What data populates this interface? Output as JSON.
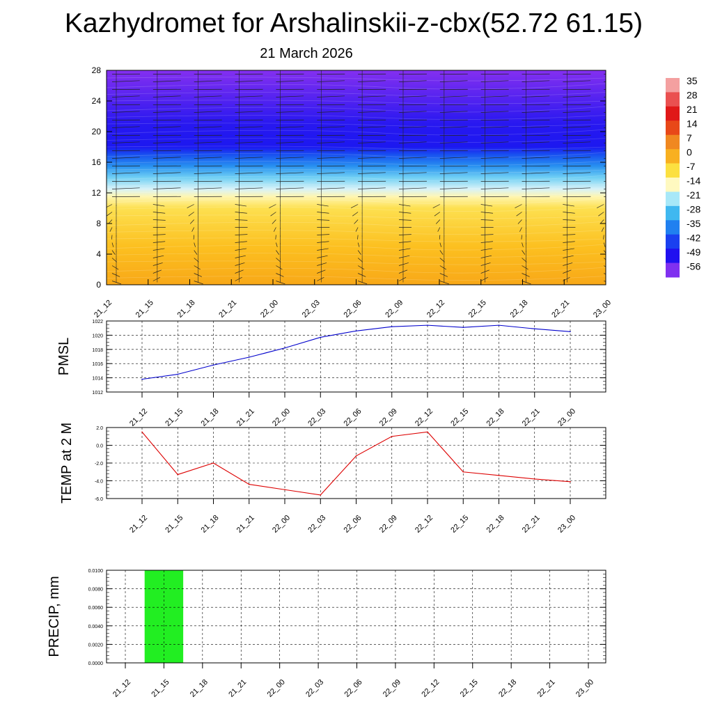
{
  "title": "Kazhydromet for Arshalinskii-z-cbx(52.72 61.15)",
  "subtitle": "21 March 2026",
  "colors": {
    "pmsl_line": "#0000cc",
    "temp_line": "#dd0000",
    "precip_bar": "#22ee22",
    "grid": "#000000"
  },
  "chart_data": [
    {
      "type": "heatmap",
      "name": "vertical-cross-section",
      "x_ticks": [
        "21_12",
        "21_15",
        "21_18",
        "21_21",
        "22_00",
        "22_03",
        "22_06",
        "22_09",
        "22_12",
        "22_15",
        "22_18",
        "22_21",
        "23_00"
      ],
      "y_ticks": [
        0,
        4,
        8,
        12,
        16,
        20,
        24,
        28
      ],
      "ylim": [
        0,
        28
      ],
      "colorbar": {
        "labels": [
          "35",
          "28",
          "21",
          "14",
          "7",
          "0",
          "-7",
          "-14",
          "-21",
          "-28",
          "-35",
          "-42",
          "-49",
          "-56"
        ],
        "colors": [
          "#f4a0a0",
          "#ea5050",
          "#e01818",
          "#e84818",
          "#f08820",
          "#f8b020",
          "#fce040",
          "#fff9c0",
          "#a8e8f8",
          "#40b8f0",
          "#2080f0",
          "#1a40f0",
          "#2010f0",
          "#8030f0"
        ]
      },
      "layers": [
        {
          "height": 0,
          "color": "#f8a818"
        },
        {
          "height": 5,
          "color": "#fcc020"
        },
        {
          "height": 10,
          "color": "#fde050"
        },
        {
          "height": 11.5,
          "color": "#fff6b0"
        },
        {
          "height": 12.5,
          "color": "#d8f2f8"
        },
        {
          "height": 14,
          "color": "#70d0f4"
        },
        {
          "height": 15.5,
          "color": "#2890f0"
        },
        {
          "height": 17,
          "color": "#1850f0"
        },
        {
          "height": 18,
          "color": "#1c18f0"
        },
        {
          "height": 21,
          "color": "#2818f0"
        },
        {
          "height": 24,
          "color": "#5022f0"
        },
        {
          "height": 28,
          "color": "#8430f0"
        }
      ]
    },
    {
      "type": "line",
      "name": "pmsl",
      "ylabel": "PMSL",
      "x": [
        "21_12",
        "21_15",
        "21_18",
        "21_21",
        "22_00",
        "22_03",
        "22_06",
        "22_09",
        "22_12",
        "22_15",
        "22_18",
        "22_21",
        "23_00"
      ],
      "values": [
        1013.8,
        1014.5,
        1015.8,
        1016.9,
        1018.2,
        1019.7,
        1020.6,
        1021.2,
        1021.4,
        1021.1,
        1021.4,
        1020.9,
        1020.5
      ],
      "ylim": [
        1012,
        1022
      ],
      "y_ticks": [
        "1012",
        "1014",
        "1016",
        "1018",
        "1020",
        "1022"
      ]
    },
    {
      "type": "line",
      "name": "temp",
      "ylabel": "TEMP at 2 M",
      "x": [
        "21_12",
        "21_15",
        "21_18",
        "21_21",
        "22_00",
        "22_03",
        "22_06",
        "22_09",
        "22_12",
        "22_15",
        "22_18",
        "22_21",
        "23_00"
      ],
      "values": [
        1.5,
        -3.3,
        -2.0,
        -4.4,
        -5.0,
        -5.6,
        -1.2,
        1.0,
        1.5,
        -3.0,
        -3.4,
        -3.8,
        -4.1
      ],
      "ylim": [
        -6,
        2
      ],
      "y_ticks": [
        "-6.0",
        "-4.0",
        "-2.0",
        "0.0",
        "2.0"
      ]
    },
    {
      "type": "bar",
      "name": "precip",
      "ylabel": "PRECIP, mm",
      "categories": [
        "21_12",
        "21_15",
        "21_18",
        "21_21",
        "22_00",
        "22_03",
        "22_06",
        "22_09",
        "22_12",
        "22_15",
        "22_18",
        "22_21",
        "23_00"
      ],
      "values": [
        0,
        0.01,
        0,
        0,
        0,
        0,
        0,
        0,
        0,
        0,
        0,
        0,
        0
      ],
      "ylim": [
        0,
        0.01
      ],
      "y_ticks": [
        "0.0000",
        "0.0020",
        "0.0040",
        "0.0060",
        "0.0080",
        "0.0100"
      ]
    }
  ]
}
